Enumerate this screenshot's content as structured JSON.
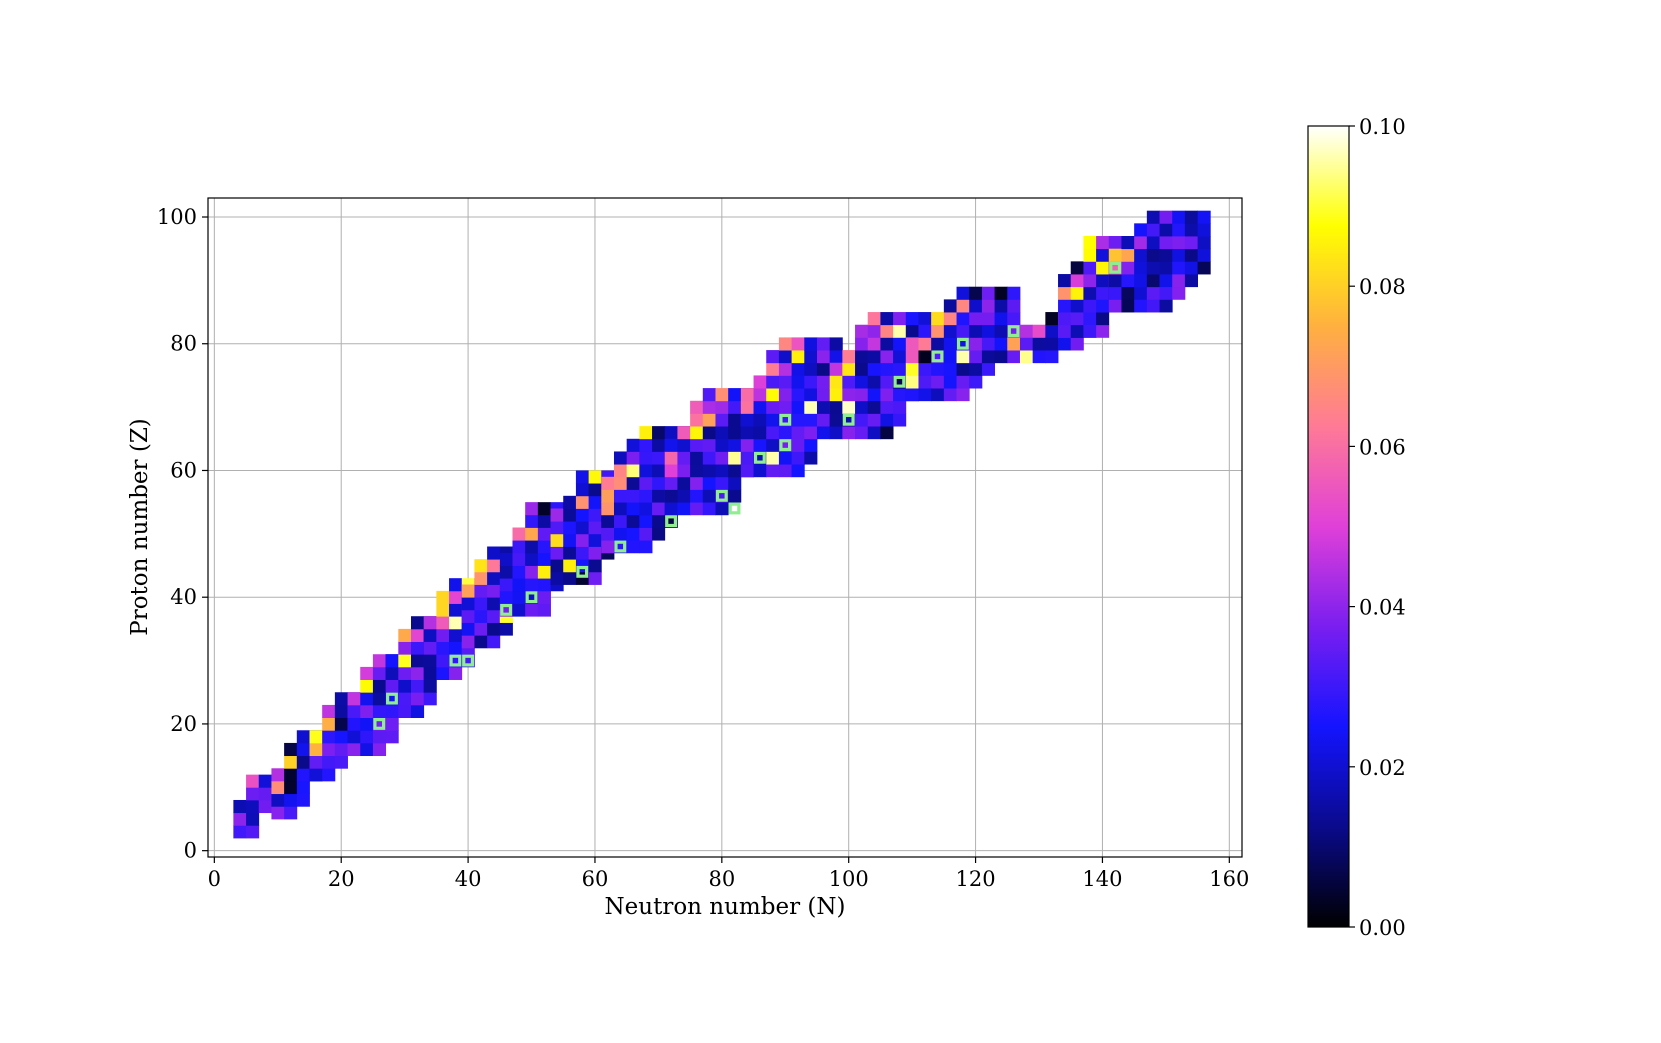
{
  "chart_data": {
    "type": "heatmap",
    "title": "",
    "xlabel": "Neutron number (N)",
    "ylabel": "Proton number (Z)",
    "xlim": [
      -1,
      162
    ],
    "ylim": [
      -1,
      103
    ],
    "xticks": [
      0,
      20,
      40,
      60,
      80,
      100,
      120,
      140,
      160
    ],
    "yticks": [
      0,
      20,
      40,
      60,
      80,
      100
    ],
    "grid": true,
    "colormap": "gnuplot2",
    "colorbar": {
      "range": [
        0.0,
        0.1
      ],
      "ticks": [
        "0.00",
        "0.02",
        "0.04",
        "0.06",
        "0.08",
        "0.10"
      ],
      "stops": [
        "#000000",
        "#0a0a8c",
        "#1414ff",
        "#7a1ef0",
        "#e040d8",
        "#ff7a96",
        "#ffb040",
        "#ffff00",
        "#ffffff"
      ]
    },
    "cell_size": 2,
    "values": "approximate per-nucleus values, 0.00–0.10, drawn as 2×2 cells along the valley of stability from N≈4,Z≈6 to N≈160,Z≈100; background values mostly 0.015–0.04 with higher (0.05–0.1) values at the proton-rich edge",
    "band": [
      [
        4,
        8,
        3,
        12
      ],
      [
        10,
        16,
        6,
        18
      ],
      [
        16,
        22,
        12,
        24
      ],
      [
        22,
        30,
        16,
        30
      ],
      [
        28,
        36,
        22,
        36
      ],
      [
        34,
        42,
        28,
        42
      ],
      [
        40,
        48,
        33,
        48
      ],
      [
        46,
        56,
        38,
        54
      ],
      [
        54,
        64,
        43,
        60
      ],
      [
        62,
        74,
        48,
        66
      ],
      [
        72,
        86,
        54,
        72
      ],
      [
        84,
        98,
        60,
        80
      ],
      [
        98,
        112,
        66,
        84
      ],
      [
        110,
        126,
        72,
        88
      ],
      [
        126,
        138,
        78,
        84
      ],
      [
        134,
        144,
        82,
        96
      ],
      [
        142,
        156,
        86,
        101
      ]
    ],
    "highlighted_nuclei": [
      [
        26,
        20
      ],
      [
        28,
        24
      ],
      [
        38,
        30
      ],
      [
        40,
        30
      ],
      [
        46,
        38
      ],
      [
        50,
        40
      ],
      [
        58,
        44
      ],
      [
        64,
        48
      ],
      [
        72,
        52
      ],
      [
        80,
        56
      ],
      [
        82,
        54
      ],
      [
        86,
        62
      ],
      [
        90,
        64
      ],
      [
        90,
        68
      ],
      [
        100,
        68
      ],
      [
        108,
        74
      ],
      [
        114,
        78
      ],
      [
        118,
        80
      ],
      [
        126,
        82
      ],
      [
        142,
        92
      ]
    ],
    "highlight_color": "#90ee90"
  }
}
